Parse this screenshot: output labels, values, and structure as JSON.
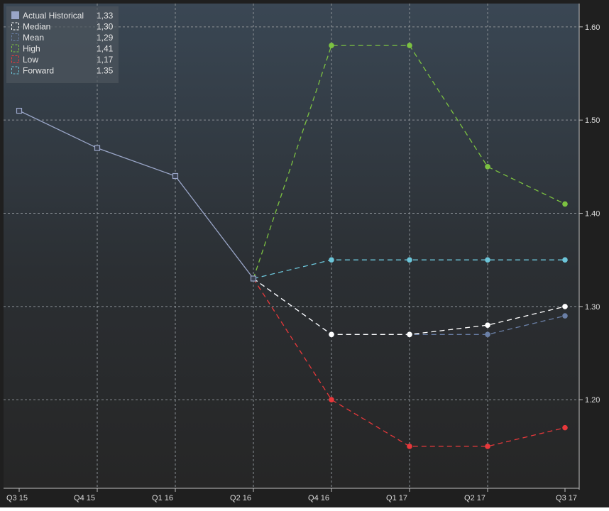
{
  "chart_data": {
    "type": "line",
    "categories": [
      "Q3 15",
      "Q4 15",
      "Q1 16",
      "Q2 16",
      "Q4 16",
      "Q1 17",
      "Q2 17",
      "Q3 17"
    ],
    "y_ticks": [
      "1.60",
      "1.50",
      "1.40",
      "1.30",
      "1.20"
    ],
    "ylim": [
      1.105,
      1.625
    ],
    "grid": true,
    "legend_position": "top-left",
    "series": [
      {
        "name": "Actual Historical",
        "legend_value": "1,33",
        "color": "#9aa6c8",
        "style": "solid",
        "marker": "open-square",
        "values": [
          1.51,
          1.47,
          1.44,
          1.33,
          null,
          null,
          null,
          null
        ]
      },
      {
        "name": "Median",
        "legend_value": "1,30",
        "color": "#ffffff",
        "style": "dashed",
        "marker": "circle",
        "values": [
          null,
          null,
          null,
          1.33,
          1.27,
          1.27,
          1.28,
          1.3
        ]
      },
      {
        "name": "Mean",
        "legend_value": "1,29",
        "color": "#6a7fa6",
        "style": "dashed",
        "marker": "circle",
        "values": [
          null,
          null,
          null,
          1.33,
          1.27,
          1.27,
          1.27,
          1.29
        ]
      },
      {
        "name": "High",
        "legend_value": "1,41",
        "color": "#7cc241",
        "style": "dashed",
        "marker": "circle",
        "values": [
          null,
          null,
          null,
          1.33,
          1.58,
          1.58,
          1.45,
          1.41
        ]
      },
      {
        "name": "Low",
        "legend_value": "1,17",
        "color": "#e8383b",
        "style": "dashed",
        "marker": "circle",
        "values": [
          null,
          null,
          null,
          1.33,
          1.2,
          1.15,
          1.15,
          1.17
        ]
      },
      {
        "name": "Forward",
        "legend_value": "1.35",
        "color": "#6cc5d9",
        "style": "dashed",
        "marker": "circle",
        "values": [
          null,
          null,
          null,
          1.33,
          1.35,
          1.35,
          1.35,
          1.35
        ]
      }
    ]
  }
}
